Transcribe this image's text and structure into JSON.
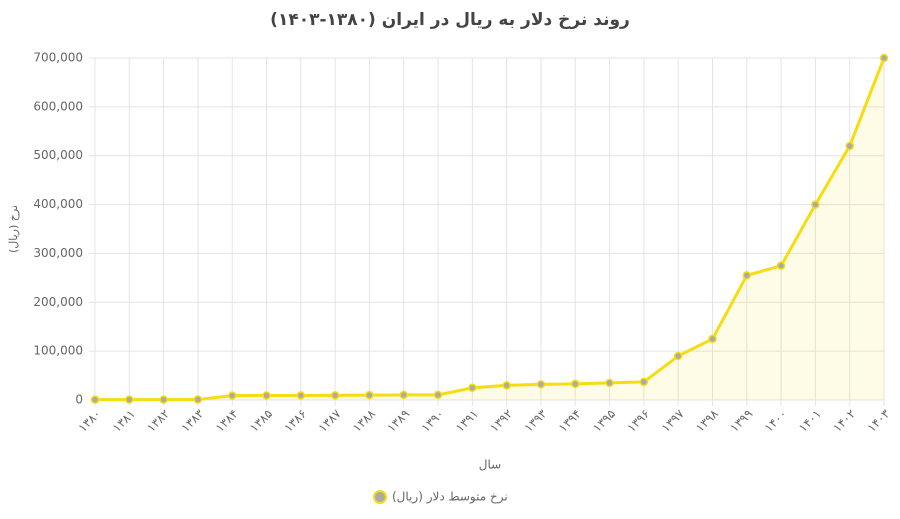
{
  "chart_data": {
    "type": "line",
    "title": "روند نرخ دلار به ریال در ایران (۱۳۸۰-۱۴۰۳)",
    "x_label": "سال",
    "y_label": "نرخ (ریال)",
    "categories": [
      "۱۳۸۰",
      "۱۳۸۱",
      "۱۳۸۲",
      "۱۳۸۳",
      "۱۳۸۴",
      "۱۳۸۵",
      "۱۳۸۶",
      "۱۳۸۷",
      "۱۳۸۸",
      "۱۳۸۹",
      "۱۳۹۰",
      "۱۳۹۱",
      "۱۳۹۲",
      "۱۳۹۳",
      "۱۳۹۴",
      "۱۳۹۵",
      "۱۳۹۶",
      "۱۳۹۷",
      "۱۳۹۸",
      "۱۳۹۹",
      "۱۴۰۰",
      "۱۴۰۱",
      "۱۴۰۲",
      "۱۴۰۳"
    ],
    "series": [
      {
        "name": "نرخ متوسط دلار (ریال)",
        "color": "#f7dc10",
        "values": [
          800,
          800,
          800,
          900,
          9000,
          9200,
          9300,
          9500,
          9900,
          10500,
          10500,
          25000,
          30000,
          32000,
          33000,
          35000,
          37000,
          90000,
          125000,
          255000,
          275000,
          400000,
          520000,
          700000
        ]
      }
    ],
    "ylim": [
      0,
      700000
    ],
    "yticks": [
      {
        "value": 0,
        "label": "0"
      },
      {
        "value": 100000,
        "label": "100,000"
      },
      {
        "value": 200000,
        "label": "200,000"
      },
      {
        "value": 300000,
        "label": "300,000"
      },
      {
        "value": 400000,
        "label": "400,000"
      },
      {
        "value": 500000,
        "label": "500,000"
      },
      {
        "value": 600000,
        "label": "600,000"
      },
      {
        "value": 700000,
        "label": "700,000"
      }
    ],
    "grid": true,
    "fill": true,
    "legend": "bottom"
  }
}
